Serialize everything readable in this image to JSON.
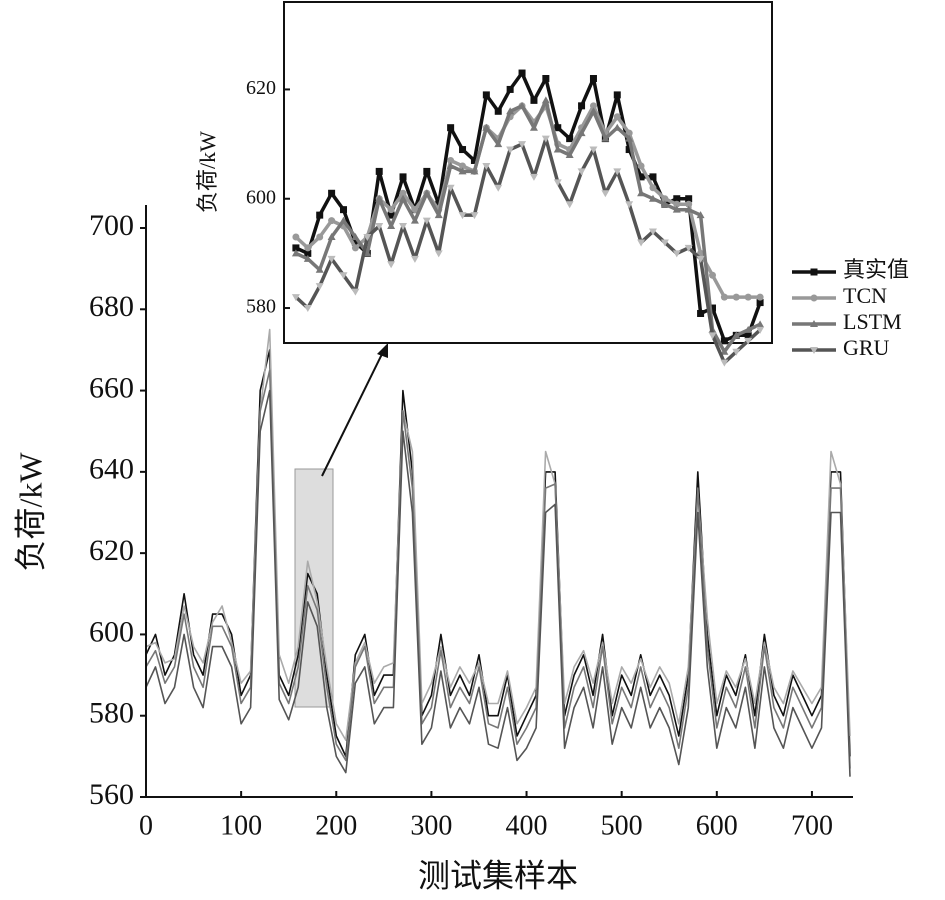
{
  "chart_data": [
    {
      "type": "line",
      "xlabel": "测试集样本",
      "ylabel": "负荷/kW",
      "x": [
        0,
        10,
        20,
        30,
        40,
        50,
        60,
        70,
        80,
        90,
        100,
        110,
        120,
        130,
        140,
        150,
        160,
        170,
        180,
        190,
        200,
        210,
        220,
        230,
        240,
        250,
        260,
        270,
        280,
        290,
        300,
        310,
        320,
        330,
        340,
        350,
        360,
        370,
        380,
        390,
        400,
        410,
        420,
        430,
        440,
        450,
        460,
        470,
        480,
        490,
        500,
        510,
        520,
        530,
        540,
        550,
        560,
        570,
        580,
        590,
        600,
        610,
        620,
        630,
        640,
        650,
        660,
        670,
        680,
        690,
        700,
        710,
        720,
        730,
        740
      ],
      "xlim": [
        0,
        740
      ],
      "ylim": [
        560,
        700
      ],
      "xticks": [
        0,
        100,
        200,
        300,
        400,
        500,
        600,
        700
      ],
      "yticks": [
        560,
        580,
        600,
        620,
        640,
        660,
        680,
        700
      ],
      "series": [
        {
          "color": "#111111",
          "values": [
            595,
            600,
            590,
            595,
            610,
            595,
            590,
            605,
            605,
            600,
            585,
            590,
            660,
            670,
            590,
            585,
            595,
            615,
            610,
            590,
            575,
            570,
            595,
            600,
            585,
            590,
            590,
            660,
            640,
            580,
            585,
            600,
            585,
            590,
            585,
            595,
            580,
            580,
            590,
            575,
            580,
            585,
            640,
            640,
            580,
            590,
            595,
            585,
            600,
            580,
            590,
            585,
            595,
            585,
            590,
            585,
            575,
            590,
            640,
            600,
            580,
            590,
            585,
            595,
            580,
            600,
            585,
            580,
            590,
            585,
            580,
            585,
            640,
            640,
            570
          ]
        },
        {
          "color": "#aaaaaa",
          "values": [
            597,
            598,
            593,
            594,
            607,
            597,
            593,
            603,
            607,
            598,
            588,
            591,
            655,
            675,
            595,
            588,
            597,
            618,
            608,
            592,
            578,
            574,
            593,
            598,
            588,
            592,
            593,
            655,
            645,
            583,
            588,
            597,
            587,
            592,
            588,
            593,
            583,
            583,
            591,
            578,
            582,
            587,
            645,
            637,
            583,
            592,
            596,
            588,
            598,
            583,
            592,
            588,
            594,
            587,
            592,
            588,
            578,
            592,
            635,
            604,
            583,
            591,
            587,
            594,
            583,
            598,
            587,
            583,
            591,
            587,
            583,
            587,
            645,
            637,
            575
          ]
        },
        {
          "color": "#777777",
          "values": [
            592,
            596,
            588,
            592,
            605,
            592,
            587,
            602,
            602,
            597,
            583,
            587,
            655,
            665,
            588,
            583,
            592,
            612,
            606,
            587,
            573,
            569,
            592,
            597,
            583,
            587,
            587,
            655,
            636,
            578,
            582,
            596,
            582,
            587,
            583,
            592,
            578,
            577,
            587,
            573,
            577,
            582,
            636,
            637,
            577,
            587,
            592,
            582,
            597,
            578,
            587,
            582,
            592,
            582,
            587,
            582,
            572,
            587,
            636,
            597,
            577,
            587,
            582,
            592,
            577,
            597,
            582,
            577,
            587,
            582,
            577,
            582,
            636,
            636,
            567
          ]
        },
        {
          "color": "#555555",
          "values": [
            587,
            592,
            583,
            587,
            600,
            587,
            582,
            597,
            597,
            592,
            578,
            582,
            650,
            660,
            584,
            579,
            587,
            608,
            602,
            582,
            570,
            566,
            588,
            592,
            578,
            582,
            582,
            650,
            630,
            573,
            577,
            591,
            577,
            582,
            578,
            587,
            573,
            572,
            582,
            569,
            572,
            577,
            630,
            632,
            572,
            582,
            587,
            577,
            592,
            573,
            582,
            577,
            587,
            577,
            582,
            577,
            568,
            582,
            630,
            592,
            572,
            582,
            577,
            587,
            572,
            592,
            577,
            572,
            582,
            577,
            572,
            577,
            630,
            630,
            565
          ]
        }
      ]
    },
    {
      "type": "line",
      "ylabel": "负荷/kW",
      "x": [
        156,
        157,
        158,
        159,
        160,
        161,
        162,
        163,
        164,
        165,
        166,
        167,
        168,
        169,
        170,
        171,
        172,
        173,
        174,
        175,
        176,
        177,
        178,
        179,
        180,
        181,
        182,
        183,
        184,
        185,
        186,
        187,
        188,
        189,
        190,
        191,
        192,
        193,
        194,
        195
      ],
      "xlim": [
        155,
        196
      ],
      "ylim": [
        573.6,
        636
      ],
      "yticks": [
        580,
        600,
        620
      ],
      "legend": "right",
      "series": [
        {
          "name": "真实值",
          "color": "#111111",
          "marker": "square",
          "values": [
            591,
            590,
            597,
            601,
            598,
            592,
            590,
            605,
            597,
            604,
            598,
            605,
            599,
            613,
            609,
            607,
            619,
            616,
            620,
            623,
            618,
            622,
            613,
            611,
            617,
            622,
            611,
            619,
            609,
            604,
            604,
            599,
            600,
            600,
            579,
            580,
            574,
            575,
            575,
            581
          ]
        },
        {
          "name": "TCN",
          "color": "#999999",
          "marker": "circle",
          "values": [
            593,
            591,
            593,
            596,
            595,
            591,
            593,
            600,
            598,
            601,
            598,
            601,
            598,
            607,
            606,
            605,
            613,
            611,
            615,
            617,
            614,
            617,
            610,
            609,
            613,
            617,
            612,
            615,
            612,
            606,
            602,
            600,
            599,
            599,
            590,
            586,
            582,
            582,
            582,
            582
          ]
        },
        {
          "name": "LSTM",
          "color": "#777777",
          "marker": "triangle",
          "values": [
            590,
            589,
            587,
            593,
            596,
            593,
            590,
            600,
            595,
            600,
            596,
            601,
            597,
            606,
            605,
            605,
            613,
            610,
            616,
            617,
            613,
            618,
            609,
            608,
            612,
            616,
            611,
            613,
            611,
            601,
            600,
            599,
            598,
            598,
            597,
            576,
            572,
            575,
            576,
            577
          ]
        },
        {
          "name": "GRU",
          "color": "#555555",
          "marker": "triangle-down",
          "values": [
            582,
            580,
            584,
            589,
            586,
            583,
            593,
            595,
            588,
            595,
            589,
            596,
            590,
            602,
            597,
            597,
            606,
            602,
            609,
            610,
            604,
            611,
            603,
            599,
            605,
            609,
            601,
            605,
            599,
            592,
            594,
            592,
            590,
            591,
            589,
            575,
            570,
            572,
            574,
            576
          ]
        }
      ]
    }
  ]
}
